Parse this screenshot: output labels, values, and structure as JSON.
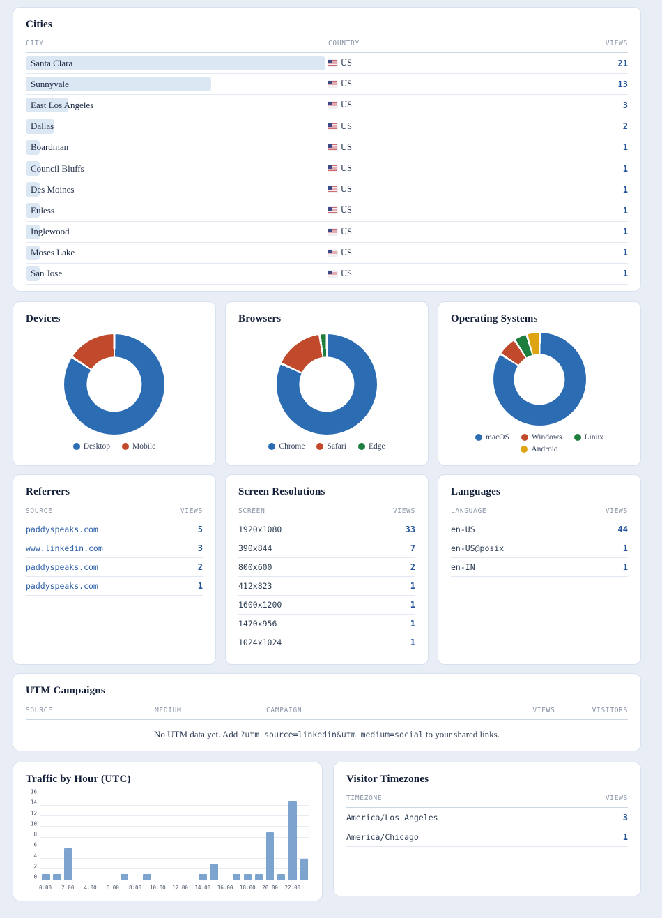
{
  "colors": {
    "page_bg": "#e9eef6",
    "card_bg": "#ffffff",
    "card_border": "#d7e1ef",
    "accent_blue": "#24549b",
    "city_bar": "#dce7f4",
    "traffic_bar": "#7ca4ce"
  },
  "cards": {
    "cities": {
      "title": "Cities",
      "col_city": "CITY",
      "col_country": "COUNTRY",
      "col_views": "VIEWS",
      "rows": [
        {
          "city": "Santa Clara",
          "country": "US",
          "views": 21
        },
        {
          "city": "Sunnyvale",
          "country": "US",
          "views": 13
        },
        {
          "city": "East Los Angeles",
          "country": "US",
          "views": 3
        },
        {
          "city": "Dallas",
          "country": "US",
          "views": 2
        },
        {
          "city": "Boardman",
          "country": "US",
          "views": 1
        },
        {
          "city": "Council Bluffs",
          "country": "US",
          "views": 1
        },
        {
          "city": "Des Moines",
          "country": "US",
          "views": 1
        },
        {
          "city": "Euless",
          "country": "US",
          "views": 1
        },
        {
          "city": "Inglewood",
          "country": "US",
          "views": 1
        },
        {
          "city": "Moses Lake",
          "country": "US",
          "views": 1
        },
        {
          "city": "San Jose",
          "country": "US",
          "views": 1
        }
      ]
    },
    "referrers": {
      "title": "Referrers",
      "col_key": "SOURCE",
      "col_views": "VIEWS",
      "rows": [
        {
          "key": "paddyspeaks.com",
          "views": 5
        },
        {
          "key": "www.linkedin.com",
          "views": 3
        },
        {
          "key": "paddyspeaks.com",
          "views": 2
        },
        {
          "key": "paddyspeaks.com",
          "views": 1
        }
      ]
    },
    "screens": {
      "title": "Screen Resolutions",
      "col_key": "SCREEN",
      "col_views": "VIEWS",
      "rows": [
        {
          "key": "1920x1080",
          "views": 33
        },
        {
          "key": "390x844",
          "views": 7
        },
        {
          "key": "800x600",
          "views": 2
        },
        {
          "key": "412x823",
          "views": 1
        },
        {
          "key": "1600x1200",
          "views": 1
        },
        {
          "key": "1470x956",
          "views": 1
        },
        {
          "key": "1024x1024",
          "views": 1
        }
      ]
    },
    "languages": {
      "title": "Languages",
      "col_key": "LANGUAGE",
      "col_views": "VIEWS",
      "rows": [
        {
          "key": "en-US",
          "views": 44
        },
        {
          "key": "en-US@posix",
          "views": 1
        },
        {
          "key": "en-IN",
          "views": 1
        }
      ]
    },
    "utm": {
      "title": "UTM Campaigns",
      "col_source": "SOURCE",
      "col_medium": "MEDIUM",
      "col_campaign": "CAMPAIGN",
      "col_views": "VIEWS",
      "col_visitors": "VISITORS",
      "empty_prefix": "No UTM data yet. Add ",
      "empty_code": "?utm_source=linkedin&utm_medium=social",
      "empty_suffix": " to your shared links."
    },
    "timezones": {
      "title": "Visitor Timezones",
      "col_key": "TIMEZONE",
      "col_views": "VIEWS",
      "rows": [
        {
          "key": "America/Los_Angeles",
          "views": 3
        },
        {
          "key": "America/Chicago",
          "views": 1
        }
      ]
    }
  },
  "chart_data": [
    {
      "id": "devices",
      "type": "pie",
      "title": "Devices",
      "donut": true,
      "legend_position": "bottom",
      "segments": [
        {
          "label": "Desktop",
          "value": 37,
          "color": "#2b6cb3"
        },
        {
          "label": "Mobile",
          "value": 7,
          "color": "#c14a2d"
        }
      ]
    },
    {
      "id": "browsers",
      "type": "pie",
      "title": "Browsers",
      "donut": true,
      "legend_position": "bottom",
      "segments": [
        {
          "label": "Chrome",
          "value": 36,
          "color": "#2b6cb3"
        },
        {
          "label": "Safari",
          "value": 7,
          "color": "#c14a2d"
        },
        {
          "label": "Edge",
          "value": 1,
          "color": "#1e7e3e"
        }
      ]
    },
    {
      "id": "os",
      "type": "pie",
      "title": "Operating Systems",
      "donut": true,
      "legend_position": "bottom",
      "segments": [
        {
          "label": "macOS",
          "value": 37,
          "color": "#2b6cb3"
        },
        {
          "label": "Windows",
          "value": 3,
          "color": "#c14a2d"
        },
        {
          "label": "Linux",
          "value": 2,
          "color": "#1e7e3e"
        },
        {
          "label": "Android",
          "value": 2,
          "color": "#dfa414"
        }
      ]
    },
    {
      "id": "traffic",
      "type": "bar",
      "title": "Traffic by Hour (UTC)",
      "xlabel": "",
      "ylabel": "",
      "ylim": [
        0,
        16
      ],
      "yticks": [
        0,
        2,
        4,
        6,
        8,
        10,
        12,
        14,
        16
      ],
      "grid": true,
      "categories": [
        "0:00",
        "1:00",
        "2:00",
        "3:00",
        "4:00",
        "5:00",
        "6:00",
        "7:00",
        "8:00",
        "9:00",
        "10:00",
        "11:00",
        "12:00",
        "13:00",
        "14:00",
        "15:00",
        "16:00",
        "17:00",
        "18:00",
        "19:00",
        "20:00",
        "21:00",
        "22:00",
        "23:00"
      ],
      "values": [
        1,
        1,
        6,
        0,
        0,
        0,
        0,
        1,
        0,
        1,
        0,
        0,
        0,
        0,
        1,
        3,
        0,
        1,
        1,
        1,
        9,
        1,
        15,
        4
      ],
      "xtick_labels": [
        "0:00",
        "2:00",
        "4:00",
        "6:00",
        "8:00",
        "10:00",
        "12:00",
        "14:00",
        "16:00",
        "18:00",
        "20:00",
        "22:00"
      ],
      "bar_color": "#7ca4ce"
    }
  ]
}
